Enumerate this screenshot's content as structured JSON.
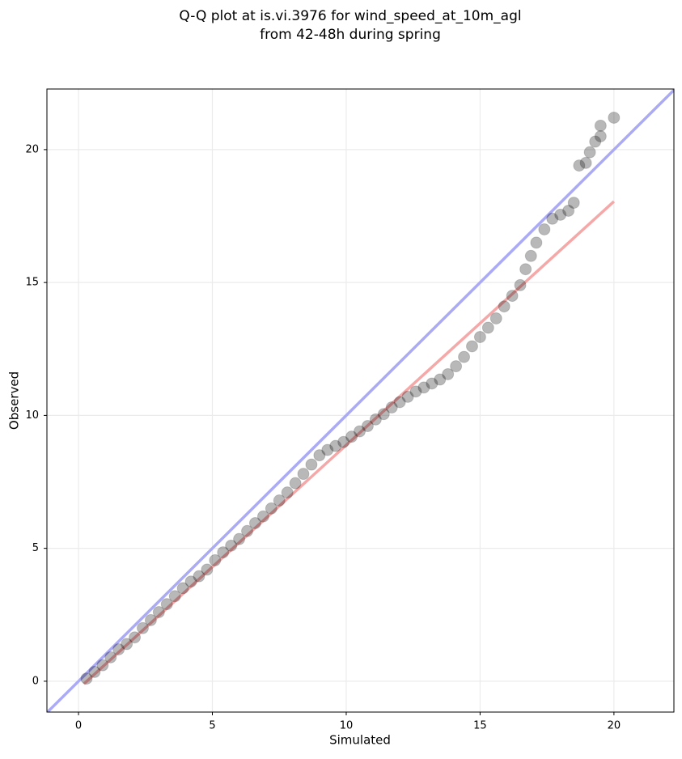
{
  "chart_data": {
    "type": "scatter",
    "title": [
      "Q-Q plot at is.vi.3976 for wind_speed_at_10m_agl",
      "from 42-48h during spring"
    ],
    "x_label": "Simulated",
    "y_label": "Observed",
    "xlim": [
      -1.18,
      22.24
    ],
    "ylim": [
      -1.16,
      22.28
    ],
    "xticks": [
      0,
      5,
      10,
      15,
      20
    ],
    "yticks": [
      0,
      5,
      10,
      15,
      20
    ],
    "grid": true,
    "points": {
      "color": "#000000",
      "x": [
        0.3,
        0.6,
        0.9,
        1.2,
        1.5,
        1.8,
        2.1,
        2.4,
        2.7,
        3.0,
        3.3,
        3.6,
        3.9,
        4.2,
        4.5,
        4.8,
        5.1,
        5.4,
        5.7,
        6.0,
        6.3,
        6.6,
        6.9,
        7.2,
        7.5,
        7.8,
        8.1,
        8.4,
        8.7,
        9.0,
        9.3,
        9.6,
        9.9,
        10.2,
        10.5,
        10.8,
        11.1,
        11.4,
        11.7,
        12.0,
        12.3,
        12.6,
        12.9,
        13.2,
        13.5,
        13.8,
        14.1,
        14.4,
        14.7,
        15.0,
        15.3,
        15.6,
        15.9,
        16.2,
        16.5,
        16.7,
        16.9,
        17.1,
        17.4,
        17.7,
        18.0,
        18.3,
        18.5,
        18.7,
        18.95,
        19.1,
        19.3,
        19.5,
        19.5,
        20.0
      ],
      "values": [
        0.1,
        0.35,
        0.6,
        0.9,
        1.2,
        1.4,
        1.65,
        2.0,
        2.3,
        2.6,
        2.9,
        3.2,
        3.5,
        3.75,
        3.95,
        4.2,
        4.55,
        4.85,
        5.1,
        5.35,
        5.65,
        5.95,
        6.2,
        6.5,
        6.8,
        7.1,
        7.45,
        7.8,
        8.15,
        8.5,
        8.7,
        8.85,
        9.0,
        9.2,
        9.4,
        9.6,
        9.85,
        10.05,
        10.3,
        10.5,
        10.7,
        10.9,
        11.05,
        11.2,
        11.35,
        11.55,
        11.85,
        12.2,
        12.6,
        12.95,
        13.3,
        13.65,
        14.1,
        14.5,
        14.9,
        15.5,
        16.0,
        16.5,
        17.0,
        17.4,
        17.55,
        17.7,
        18.0,
        19.4,
        19.5,
        19.9,
        20.3,
        20.9,
        20.5,
        21.2
      ]
    },
    "lines": [
      {
        "color": "#aaaaf5",
        "x": [
          -1.18,
          22.24
        ],
        "values": [
          -1.18,
          22.24
        ]
      },
      {
        "color": "#f5a8a8",
        "x": [
          0.2,
          20
        ],
        "values": [
          -0.1,
          18.05
        ]
      }
    ]
  }
}
